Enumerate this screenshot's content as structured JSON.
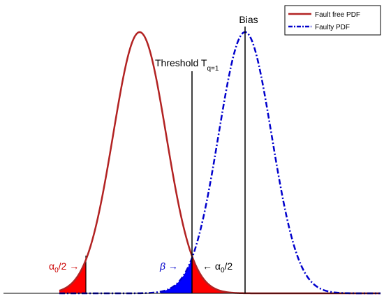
{
  "legend": {
    "entries": [
      {
        "label": "Fault free PDF"
      },
      {
        "label": "Faulty PDF"
      }
    ]
  },
  "annotations": {
    "bias": "Bias",
    "threshold": {
      "text": "Threshold T",
      "subscript": "q=1"
    },
    "alpha_left": {
      "symbol": "α",
      "subscript": "0",
      "rest": "/2 →"
    },
    "beta": "β →",
    "alpha_right": {
      "arrow": "← α",
      "subscript": "0",
      "rest": "/2"
    }
  }
}
